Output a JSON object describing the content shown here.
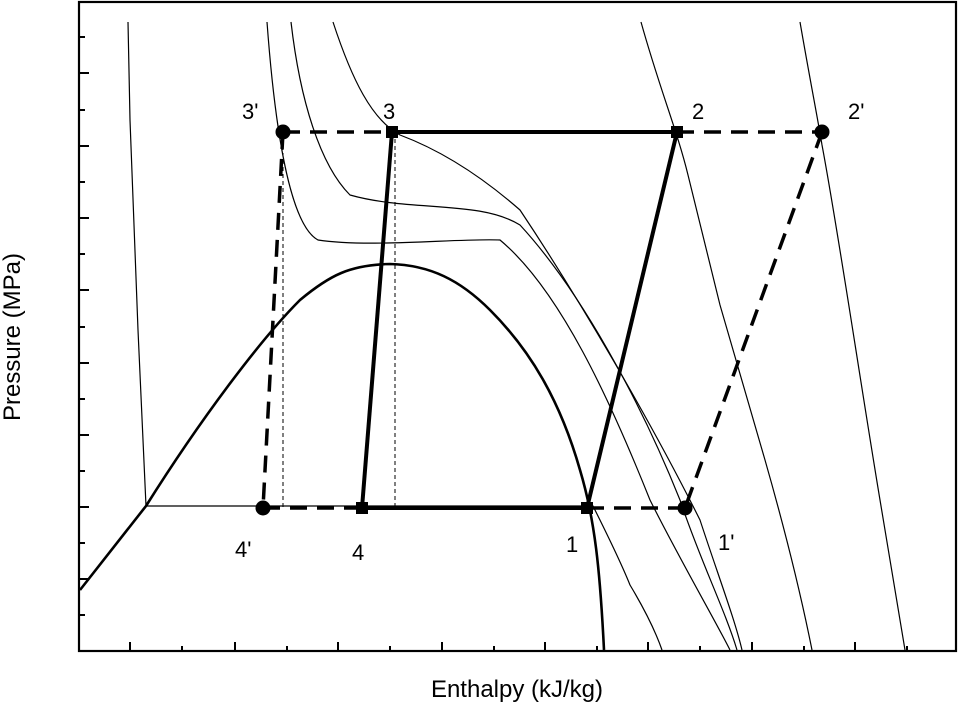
{
  "diagram": {
    "xlabel": "Enthalpy (kJ/kg)",
    "ylabel": "Pressure (MPa)",
    "points": {
      "p1": "1",
      "p2": "2",
      "p3": "3",
      "p4": "4",
      "p1_prime": "1'",
      "p2_prime": "2'",
      "p3_prime": "3'",
      "p4_prime": "4'"
    },
    "cycles": [
      {
        "name": "",
        "style": "solid",
        "marker": "square",
        "states": [
          "1",
          "2",
          "3",
          "4"
        ]
      },
      {
        "name": "",
        "style": "dashed",
        "marker": "circle",
        "states": [
          "1'",
          "2'",
          "3'",
          "4'"
        ]
      }
    ],
    "x_axis_scale": "linear",
    "y_axis_scale": "log",
    "x_tick_labels_shown": false,
    "y_tick_labels_shown": false,
    "line_color": "#000000",
    "background": "#ffffff"
  }
}
